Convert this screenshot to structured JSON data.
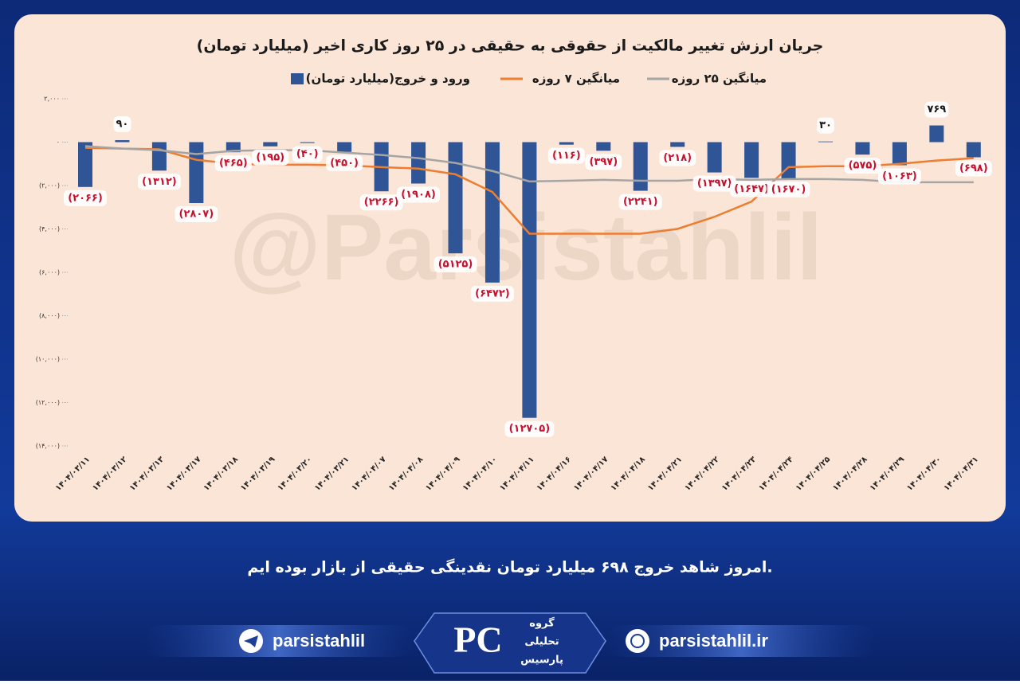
{
  "chart_data": {
    "type": "bar",
    "title": "جریان ارزش تغییر مالکیت از حقوقی به حقیقی در ۲۵ روز کاری اخیر (میلیارد تومان)",
    "categories": [
      "۱۴۰۴/۰۳/۱۱",
      "۱۴۰۴/۰۳/۱۲",
      "۱۴۰۴/۰۳/۱۳",
      "۱۴۰۴/۰۳/۱۷",
      "۱۴۰۴/۰۳/۱۸",
      "۱۴۰۴/۰۳/۱۹",
      "۱۴۰۴/۰۳/۲۰",
      "۱۴۰۴/۰۳/۲۱",
      "۱۴۰۴/۰۴/۰۷",
      "۱۴۰۴/۰۴/۰۸",
      "۱۴۰۴/۰۴/۰۹",
      "۱۴۰۴/۰۴/۱۰",
      "۱۴۰۴/۰۴/۱۱",
      "۱۴۰۴/۰۴/۱۶",
      "۱۴۰۴/۰۴/۱۷",
      "۱۴۰۴/۰۴/۱۸",
      "۱۴۰۴/۰۴/۲۱",
      "۱۴۰۴/۰۴/۲۲",
      "۱۴۰۴/۰۴/۲۳",
      "۱۴۰۴/۰۴/۲۴",
      "۱۴۰۴/۰۴/۲۵",
      "۱۴۰۴/۰۴/۲۸",
      "۱۴۰۴/۰۴/۲۹",
      "۱۴۰۴/۰۴/۳۰",
      "۱۴۰۴/۰۴/۳۱"
    ],
    "series": [
      {
        "name": "ورود و خروج(میلیارد تومان)",
        "type": "bar",
        "color": "#2f5597",
        "values": [
          -2066,
          90,
          -1312,
          -2807,
          -465,
          -195,
          -40,
          -450,
          -2266,
          -1908,
          -5125,
          -6472,
          -12705,
          -116,
          -397,
          -2241,
          -218,
          -1397,
          -1647,
          -1670,
          30,
          -575,
          -1063,
          769,
          -698
        ],
        "value_labels": [
          "(۲۰۶۶)",
          "۹۰",
          "(۱۳۱۲)",
          "(۲۸۰۷)",
          "(۴۶۵)",
          "(۱۹۵)",
          "(۴۰)",
          "(۴۵۰)",
          "(۲۲۶۶)",
          "(۱۹۰۸)",
          "(۵۱۲۵)",
          "(۶۴۷۲)",
          "(۱۲۷۰۵)",
          "(۱۱۶)",
          "(۳۹۷)",
          "(۲۲۴۱)",
          "(۲۱۸)",
          "(۱۳۹۷)",
          "(۱۶۴۷)",
          "(۱۶۷۰)",
          "۳۰",
          "(۵۷۵)",
          "(۱۰۶۳)",
          "۷۶۹",
          "(۶۹۸)"
        ]
      },
      {
        "name": "میانگین ۷ روزه",
        "type": "line",
        "color": "#ed7d31",
        "values": [
          -260,
          -300,
          -330,
          -815,
          -1000,
          -1040,
          -1040,
          -1070,
          -1150,
          -1220,
          -1480,
          -2300,
          -4220,
          -4220,
          -4220,
          -4220,
          -4000,
          -3440,
          -2740,
          -1150,
          -1110,
          -1110,
          -1000,
          -850,
          -740
        ]
      },
      {
        "name": "میانگین ۲۵ روزه",
        "type": "line",
        "color": "#a5a5a5",
        "values": [
          -185,
          -300,
          -370,
          -550,
          -400,
          -370,
          -370,
          -480,
          -590,
          -740,
          -960,
          -1330,
          -1810,
          -1780,
          -1740,
          -1780,
          -1780,
          -1700,
          -1740,
          -1700,
          -1700,
          -1740,
          -1850,
          -1850,
          -1850
        ]
      }
    ],
    "ylim": [
      -14000,
      2000
    ],
    "yticks": [
      {
        "value": 2000,
        "label": "۲,۰۰۰"
      },
      {
        "value": 0,
        "label": "۰"
      },
      {
        "value": -2000,
        "label": "(۲,۰۰۰)"
      },
      {
        "value": -4000,
        "label": "(۴,۰۰۰)"
      },
      {
        "value": -6000,
        "label": "(۶,۰۰۰)"
      },
      {
        "value": -8000,
        "label": "(۸,۰۰۰)"
      },
      {
        "value": -10000,
        "label": "(۱۰,۰۰۰)"
      },
      {
        "value": -12000,
        "label": "(۱۲,۰۰۰)"
      },
      {
        "value": -14000,
        "label": "(۱۴,۰۰۰)"
      }
    ],
    "grid": false,
    "legend": "top"
  },
  "watermark": "@Parsistahlil",
  "caption": "امروز شاهد خروج ۶۹۸ میلیارد تومان نقدینگی حقیقی از بازار بوده ایم.",
  "footer": {
    "telegram": "parsistahlil",
    "website": "parsistahlil.ir",
    "logo": [
      "گروه",
      "تحلیلی",
      "پارسیس"
    ]
  }
}
